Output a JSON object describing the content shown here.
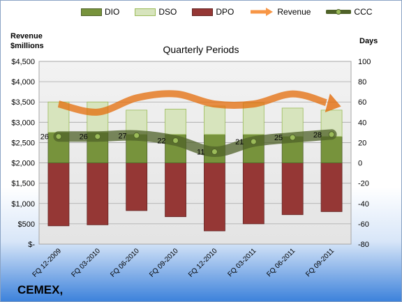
{
  "company": "CEMEX,",
  "chart_data": {
    "type": "bar",
    "title": "Quarterly Periods",
    "left_axis_title": [
      "Revenue",
      "$millions"
    ],
    "right_axis_title": "Days",
    "categories": [
      "FQ 12-2009",
      "FQ 03-2010",
      "FQ 06-2010",
      "FQ 09-2010",
      "FQ 12-2010",
      "FQ 03-2011",
      "FQ 06-2011",
      "FQ 09-2011"
    ],
    "left_axis": {
      "min": 0,
      "max": 4500,
      "step": 500,
      "ticks": [
        "$-",
        "$500",
        "$1,000",
        "$1,500",
        "$2,000",
        "$2,500",
        "$3,000",
        "$3,500",
        "$4,000",
        "$4,500"
      ]
    },
    "right_axis": {
      "min": -80,
      "max": 100,
      "step": 20,
      "ticks": [
        "-80",
        "-60",
        "-40",
        "-20",
        "0",
        "20",
        "40",
        "60",
        "80",
        "100"
      ]
    },
    "series": [
      {
        "name": "DIO",
        "kind": "bar",
        "units": "days",
        "values": [
          30,
          30,
          28,
          28,
          28,
          28,
          26,
          26
        ],
        "color": "#77933c"
      },
      {
        "name": "DSO",
        "kind": "bar",
        "units": "days",
        "values": [
          30,
          30,
          24,
          25,
          28,
          31,
          28,
          26
        ],
        "color": "#d7e4bd"
      },
      {
        "name": "DPO",
        "kind": "bar",
        "units": "days",
        "values": [
          -62,
          -61,
          -47,
          -53,
          -67,
          -60,
          -51,
          -48
        ],
        "color": "#953735"
      },
      {
        "name": "Revenue",
        "kind": "line",
        "units": "$millions",
        "values": [
          3450,
          3250,
          3600,
          3700,
          3450,
          3450,
          3700,
          3450
        ],
        "color": "#e46c0a"
      },
      {
        "name": "CCC",
        "kind": "line",
        "units": "days",
        "values": [
          26,
          26,
          27,
          22,
          11,
          21,
          25,
          28
        ],
        "color": "#4f6228"
      }
    ],
    "data_labels": [
      "26",
      "26",
      "27",
      "22",
      "11",
      "21",
      "25",
      "28"
    ],
    "legend_position": "top",
    "grid": true
  }
}
